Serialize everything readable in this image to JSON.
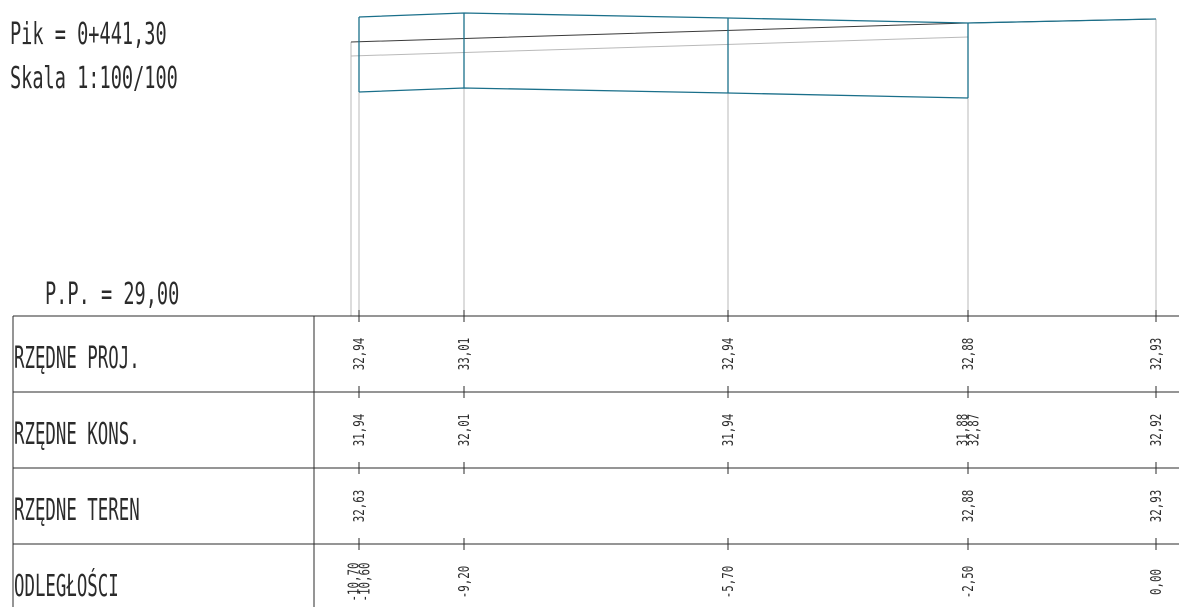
{
  "header": {
    "pik": "Pik = 0+441,30",
    "skala": "Skala 1:100/100",
    "pp": "P.P.  =  29,00"
  },
  "colors": {
    "design_profile": "#1a6f8a",
    "line_dark": "#2b2b2b",
    "line_light": "#b9b9b9"
  },
  "table": {
    "rows": [
      {
        "key": "proj",
        "label": "RZĘDNE PROJ."
      },
      {
        "key": "kons",
        "label": "RZĘDNE KONS."
      },
      {
        "key": "teren",
        "label": "RZĘDNE TEREN"
      },
      {
        "key": "odl",
        "label": "ODLEGŁOŚCI"
      }
    ],
    "stations": [
      {
        "id": "s1",
        "proj": "32,94",
        "kons": "31,94",
        "teren": "32,63",
        "odl": "-10,70\n-10,60"
      },
      {
        "id": "s2",
        "proj": "33,01",
        "kons": "32,01",
        "teren": "",
        "odl": "-9,20"
      },
      {
        "id": "s3",
        "proj": "32,94",
        "kons": "31,94",
        "teren": "",
        "odl": "-5,70"
      },
      {
        "id": "s4",
        "proj": "32,88",
        "kons": "31,88\n32,87",
        "teren": "32,88",
        "odl": "-2,50"
      },
      {
        "id": "s5",
        "proj": "32,93",
        "kons": "32,92",
        "teren": "32,93",
        "odl": "0,00"
      }
    ]
  }
}
